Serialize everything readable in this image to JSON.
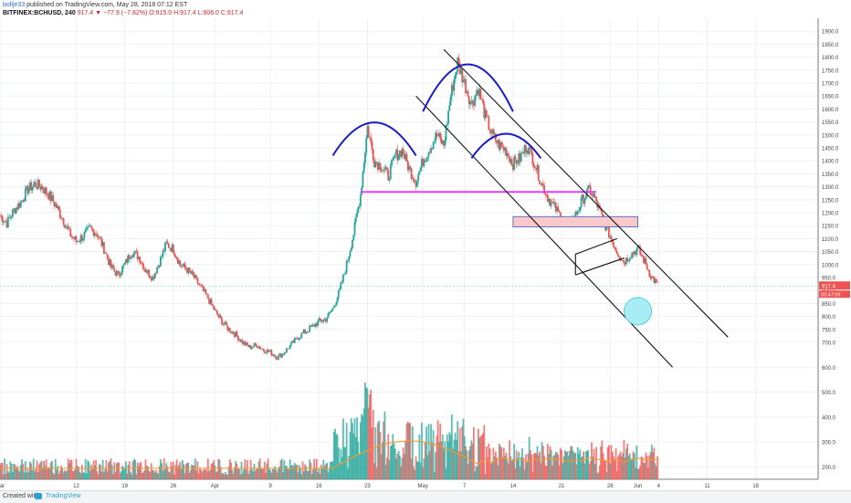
{
  "header": {
    "author": "bollje33",
    "published": "published on TradingView.com, May 28, 2018 07:12 EST",
    "symbol": "BITFINEX:BCHUSD, 240",
    "last": "917.4",
    "change": "−77.9 (−7.82%)",
    "ohlc": "O:915.0 H:917.4 L:906.0 C:917.4"
  },
  "footer": {
    "created_with": "Created with",
    "brand": "TradingView"
  },
  "colors": {
    "up": "#26a69a",
    "down": "#ef5350",
    "ma": "#f59b2e",
    "pink_line": "#e040fb",
    "arc": "#1a1ac8"
  },
  "price_badges": {
    "last": "917.4",
    "timer": "03:47:09"
  },
  "chart_data": {
    "type": "candlestick",
    "y_axis": {
      "min": 150,
      "max": 1950,
      "ticks": [
        200,
        300,
        400,
        500,
        600,
        700,
        750,
        800,
        850,
        900,
        950,
        1000,
        1050,
        1100,
        1150,
        1200,
        1250,
        1300,
        1350,
        1400,
        1450,
        1500,
        1550,
        1600,
        1650,
        1700,
        1750,
        1800,
        1850,
        1900
      ],
      "tick_labels": [
        "200.0",
        "300.0",
        "400.0",
        "500.0",
        "600.0",
        "700.0",
        "750.0",
        "800.0",
        "850.0",
        "900.0",
        "950.0",
        "1000.0",
        "1050.0",
        "1100.0",
        "1150.0",
        "1200.0",
        "1250.0",
        "1300.0",
        "1350.0",
        "1400.0",
        "1450.0",
        "1500.0",
        "1550.0",
        "1600.0",
        "1650.0",
        "1700.0",
        "1750.0",
        "1800.0",
        "1850.0",
        "1900.0"
      ]
    },
    "x_axis": {
      "labels": [
        "Mar",
        "12",
        "19",
        "26",
        "Apr",
        "9",
        "16",
        "23",
        "May",
        "7",
        "14",
        "21",
        "28",
        "Jun",
        "4",
        "11",
        "18"
      ],
      "label_days": [
        0,
        11,
        18,
        25,
        31,
        39,
        46,
        53,
        61,
        67,
        74,
        81,
        88,
        92,
        95,
        102,
        109
      ],
      "range_days": [
        0,
        118
      ]
    },
    "price_path": [
      [
        0,
        1190
      ],
      [
        1,
        1160
      ],
      [
        2,
        1210
      ],
      [
        3,
        1240
      ],
      [
        4,
        1290
      ],
      [
        5,
        1310
      ],
      [
        6,
        1300
      ],
      [
        7,
        1270
      ],
      [
        8,
        1230
      ],
      [
        9,
        1180
      ],
      [
        10,
        1120
      ],
      [
        11,
        1090
      ],
      [
        12,
        1110
      ],
      [
        13,
        1140
      ],
      [
        14,
        1120
      ],
      [
        15,
        1060
      ],
      [
        16,
        990
      ],
      [
        17,
        960
      ],
      [
        18,
        1000
      ],
      [
        19,
        1050
      ],
      [
        20,
        1030
      ],
      [
        21,
        980
      ],
      [
        22,
        950
      ],
      [
        23,
        1010
      ],
      [
        24,
        1080
      ],
      [
        25,
        1060
      ],
      [
        26,
        1000
      ],
      [
        27,
        980
      ],
      [
        28,
        950
      ],
      [
        29,
        910
      ],
      [
        30,
        870
      ],
      [
        31,
        820
      ],
      [
        32,
        780
      ],
      [
        33,
        750
      ],
      [
        34,
        730
      ],
      [
        35,
        700
      ],
      [
        36,
        680
      ],
      [
        37,
        690
      ],
      [
        38,
        670
      ],
      [
        39,
        660
      ],
      [
        40,
        640
      ],
      [
        41,
        660
      ],
      [
        42,
        690
      ],
      [
        43,
        720
      ],
      [
        44,
        740
      ],
      [
        45,
        760
      ],
      [
        46,
        780
      ],
      [
        47,
        790
      ],
      [
        48,
        830
      ],
      [
        49,
        900
      ],
      [
        50,
        1000
      ],
      [
        51,
        1120
      ],
      [
        52,
        1270
      ],
      [
        53,
        1530
      ],
      [
        54,
        1400
      ],
      [
        55,
        1380
      ],
      [
        56,
        1340
      ],
      [
        57,
        1420
      ],
      [
        58,
        1440
      ],
      [
        59,
        1370
      ],
      [
        60,
        1320
      ],
      [
        61,
        1400
      ],
      [
        62,
        1450
      ],
      [
        63,
        1500
      ],
      [
        64,
        1460
      ],
      [
        65,
        1650
      ],
      [
        66,
        1780
      ],
      [
        67,
        1700
      ],
      [
        68,
        1620
      ],
      [
        69,
        1680
      ],
      [
        70,
        1570
      ],
      [
        71,
        1500
      ],
      [
        72,
        1460
      ],
      [
        73,
        1440
      ],
      [
        74,
        1390
      ],
      [
        75,
        1410
      ],
      [
        76,
        1460
      ],
      [
        77,
        1400
      ],
      [
        78,
        1320
      ],
      [
        79,
        1260
      ],
      [
        80,
        1220
      ],
      [
        81,
        1180
      ],
      [
        82,
        1150
      ],
      [
        83,
        1190
      ],
      [
        84,
        1250
      ],
      [
        85,
        1290
      ],
      [
        86,
        1240
      ],
      [
        87,
        1170
      ],
      [
        88,
        1110
      ],
      [
        89,
        1050
      ],
      [
        90,
        1010
      ],
      [
        91,
        1040
      ],
      [
        92,
        1060
      ],
      [
        93,
        1010
      ],
      [
        94,
        950
      ],
      [
        95,
        917
      ]
    ],
    "ma_note": "",
    "annotations": {
      "horizontal_line": {
        "y": 1280,
        "from_day": 52,
        "to_day": 86
      },
      "zone": {
        "y_top": 1185,
        "y_bottom": 1145,
        "from_day": 74,
        "to_day": 92
      },
      "channel_upper": [
        [
          64,
          1830
        ],
        [
          105,
          720
        ]
      ],
      "channel_lower": [
        [
          60,
          1650
        ],
        [
          97,
          600
        ]
      ],
      "small_channel": [
        [
          [
            83,
            1040
          ],
          [
            89,
            1100
          ]
        ],
        [
          [
            83,
            960
          ],
          [
            90,
            1025
          ]
        ]
      ],
      "arcs": [
        {
          "from_day": 48,
          "to_day": 60,
          "base": 1420,
          "peak": 1610
        },
        {
          "from_day": 61,
          "to_day": 74,
          "base": 1590,
          "peak": 1860
        },
        {
          "from_day": 68,
          "to_day": 78,
          "base": 1410,
          "peak": 1550
        }
      ],
      "circle": {
        "day": 92,
        "y": 820
      }
    }
  }
}
